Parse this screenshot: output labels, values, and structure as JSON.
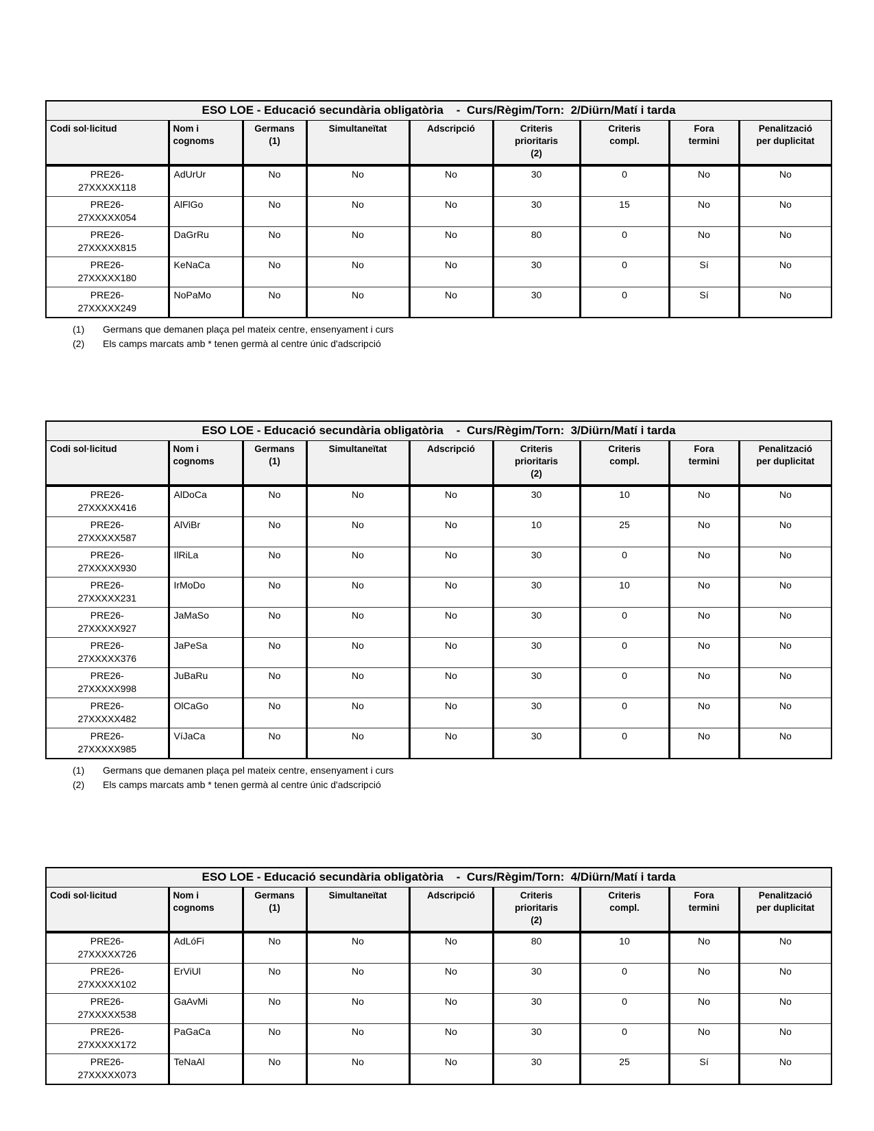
{
  "page": {
    "background": "#ffffff",
    "header_background": "#f1f1f1",
    "border_color": "#000000"
  },
  "columns": [
    "Codi sol·licitud",
    "Nom i\ncognoms",
    "Germans\n(1)",
    "Simultaneïtat",
    "Adscripció",
    "Criteris\nprioritaris\n(2)",
    "Criteris\ncompl.",
    "Fora\ntermini",
    "Penalització\nper duplicitat"
  ],
  "footnotes": [
    {
      "marker": "(1)",
      "text": "Germans que demanen plaça pel mateix centre, ensenyament i curs"
    },
    {
      "marker": "(2)",
      "text": "Els camps marcats amb * tenen germà al centre únic d'adscripció"
    }
  ],
  "tables": [
    {
      "title": "ESO LOE - Educació secundària obligatòria    -  Curs/Règim/Torn:  2/Diürn/Matí i tarda",
      "has_footnotes": true,
      "rows": [
        {
          "cells": [
            "PRE26-\n27XXXXX118",
            "AdUrUr",
            "No",
            "No",
            "No",
            "30",
            "0",
            "No",
            "No"
          ]
        },
        {
          "cells": [
            "PRE26-\n27XXXXX054",
            "AlFlGo",
            "No",
            "No",
            "No",
            "30",
            "15",
            "No",
            "No"
          ]
        },
        {
          "cells": [
            "PRE26-\n27XXXXX815",
            "DaGrRu",
            "No",
            "No",
            "No",
            "80",
            "0",
            "No",
            "No"
          ]
        },
        {
          "cells": [
            "PRE26-\n27XXXXX180",
            "KeNaCa",
            "No",
            "No",
            "No",
            "30",
            "0",
            "Sí",
            "No"
          ]
        },
        {
          "cells": [
            "PRE26-\n27XXXXX249",
            "NoPaMo",
            "No",
            "No",
            "No",
            "30",
            "0",
            "Sí",
            "No"
          ]
        }
      ]
    },
    {
      "title": "ESO LOE - Educació secundària obligatòria    -  Curs/Règim/Torn:  3/Diürn/Matí i tarda",
      "has_footnotes": true,
      "rows": [
        {
          "cells": [
            "PRE26-\n27XXXXX416",
            "AlDoCa",
            "No",
            "No",
            "No",
            "30",
            "10",
            "No",
            "No"
          ]
        },
        {
          "cells": [
            "PRE26-\n27XXXXX587",
            "AlViBr",
            "No",
            "No",
            "No",
            "10",
            "25",
            "No",
            "No"
          ]
        },
        {
          "cells": [
            "PRE26-\n27XXXXX930",
            "IlRiLa",
            "No",
            "No",
            "No",
            "30",
            "0",
            "No",
            "No"
          ]
        },
        {
          "cells": [
            "PRE26-\n27XXXXX231",
            "IrMoDo",
            "No",
            "No",
            "No",
            "30",
            "10",
            "No",
            "No"
          ]
        },
        {
          "cells": [
            "PRE26-\n27XXXXX927",
            "JaMaSo",
            "No",
            "No",
            "No",
            "30",
            "0",
            "No",
            "No"
          ]
        },
        {
          "cells": [
            "PRE26-\n27XXXXX376",
            "JaPeSa",
            "No",
            "No",
            "No",
            "30",
            "0",
            "No",
            "No"
          ]
        },
        {
          "cells": [
            "PRE26-\n27XXXXX998",
            "JuBaRu",
            "No",
            "No",
            "No",
            "30",
            "0",
            "No",
            "No"
          ]
        },
        {
          "cells": [
            "PRE26-\n27XXXXX482",
            "OlCaGo",
            "No",
            "No",
            "No",
            "30",
            "0",
            "No",
            "No"
          ]
        },
        {
          "cells": [
            "PRE26-\n27XXXXX985",
            "VíJaCa",
            "No",
            "No",
            "No",
            "30",
            "0",
            "No",
            "No"
          ]
        }
      ]
    },
    {
      "title": "ESO LOE - Educació secundària obligatòria    -  Curs/Règim/Torn:  4/Diürn/Matí i tarda",
      "has_footnotes": false,
      "rows": [
        {
          "cells": [
            "PRE26-\n27XXXXX726",
            "AdLóFi",
            "No",
            "No",
            "No",
            "80",
            "10",
            "No",
            "No"
          ]
        },
        {
          "cells": [
            "PRE26-\n27XXXXX102",
            "ErViUl",
            "No",
            "No",
            "No",
            "30",
            "0",
            "No",
            "No"
          ]
        },
        {
          "cells": [
            "PRE26-\n27XXXXX538",
            "GaAvMi",
            "No",
            "No",
            "No",
            "30",
            "0",
            "No",
            "No"
          ]
        },
        {
          "cells": [
            "PRE26-\n27XXXXX172",
            "PaGaCa",
            "No",
            "No",
            "No",
            "30",
            "0",
            "No",
            "No"
          ]
        },
        {
          "cells": [
            "PRE26-\n27XXXXX073",
            "TeNaAl",
            "No",
            "No",
            "No",
            "30",
            "25",
            "Sí",
            "No"
          ]
        }
      ]
    }
  ]
}
